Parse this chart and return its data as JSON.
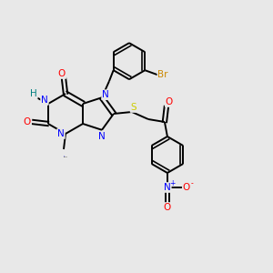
{
  "bg_color": "#e8e8e8",
  "bond_color": "#000000",
  "atom_colors": {
    "N": "#0000ff",
    "O": "#ff0000",
    "S": "#cccc00",
    "Br": "#cc8800",
    "H": "#008080",
    "C": "#000000"
  }
}
